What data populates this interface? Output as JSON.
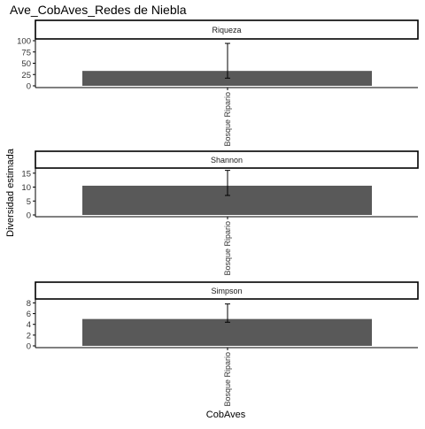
{
  "chart_data": {
    "type": "bar",
    "title": "Ave_CobAves_Redes de Niebla",
    "xlabel": "CobAves",
    "ylabel": "Diversidad estimada",
    "category": "Bosque Ripario",
    "colors": {
      "bar": "#595959",
      "axis": "#000000",
      "text": "#333333",
      "strip_bg": "#ffffff"
    },
    "panels": [
      {
        "strip": "Riqueza",
        "value": 33,
        "error_low": 17,
        "error_high": 94,
        "ylim": [
          0,
          100
        ],
        "ticks": [
          0,
          25,
          50,
          75,
          100
        ]
      },
      {
        "strip": "Shannon",
        "value": 10.5,
        "error_low": 7,
        "error_high": 16,
        "ylim": [
          0,
          16.2
        ],
        "ticks": [
          0,
          5,
          10,
          15
        ]
      },
      {
        "strip": "Simpson",
        "value": 5,
        "error_low": 4.4,
        "error_high": 7.8,
        "ylim": [
          0,
          8.4
        ],
        "ticks": [
          0,
          2,
          4,
          6,
          8
        ]
      }
    ]
  }
}
